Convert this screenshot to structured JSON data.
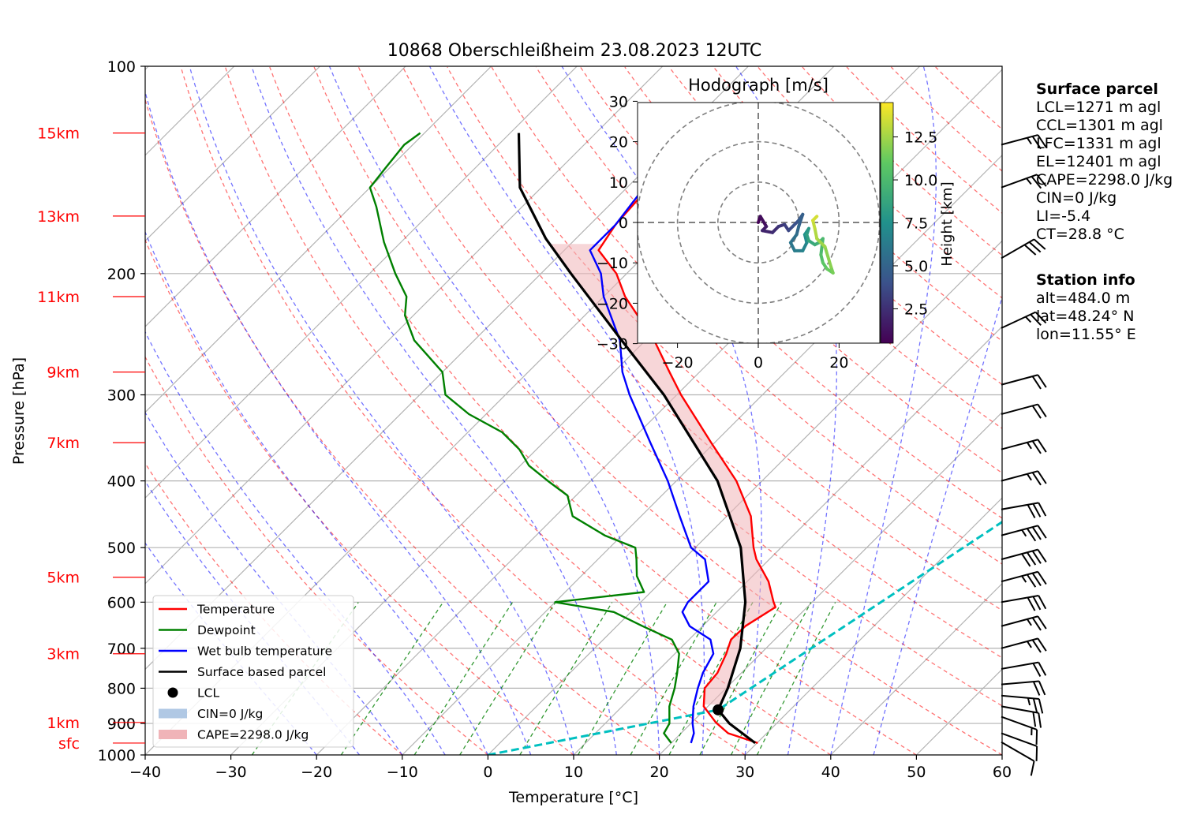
{
  "chart_data": {
    "type": "skew-t",
    "title": "10868 Oberschleißheim 23.08.2023 12UTC",
    "xlabel": "Temperature [°C]",
    "ylabel": "Pressure [hPa]",
    "xlim": [
      -40,
      60
    ],
    "ylim": [
      1000,
      100
    ],
    "y_scale": "log",
    "x_ticks": [
      -40,
      -30,
      -20,
      -10,
      0,
      10,
      20,
      30,
      40,
      50,
      60
    ],
    "y_ticks": [
      100,
      200,
      300,
      400,
      500,
      600,
      700,
      800,
      900,
      1000
    ],
    "grid": true,
    "height_labels": [
      {
        "label": "15km",
        "p": 125
      },
      {
        "label": "13km",
        "p": 165
      },
      {
        "label": "11km",
        "p": 216
      },
      {
        "label": "9km",
        "p": 278
      },
      {
        "label": "7km",
        "p": 352
      },
      {
        "label": "5km",
        "p": 552
      },
      {
        "label": "3km",
        "p": 713
      },
      {
        "label": "1km",
        "p": 897
      },
      {
        "label": "sfc",
        "p": 961
      }
    ],
    "series": [
      {
        "name": "Temperature",
        "color": "#ff0000",
        "points": [
          [
            961,
            30.1
          ],
          [
            930,
            25.5
          ],
          [
            897,
            22.8
          ],
          [
            850,
            19.5
          ],
          [
            800,
            17.5
          ],
          [
            760,
            17.2
          ],
          [
            713,
            16.0
          ],
          [
            680,
            14.9
          ],
          [
            650,
            15.0
          ],
          [
            610,
            16.3
          ],
          [
            600,
            15.5
          ],
          [
            560,
            12.5
          ],
          [
            520,
            8.5
          ],
          [
            500,
            6.8
          ],
          [
            450,
            2.8
          ],
          [
            400,
            -3.0
          ],
          [
            352,
            -10.4
          ],
          [
            300,
            -19.5
          ],
          [
            278,
            -23.5
          ],
          [
            250,
            -29.0
          ],
          [
            216,
            -37.5
          ],
          [
            200,
            -41.2
          ],
          [
            185,
            -46.0
          ],
          [
            170,
            -47.0
          ],
          [
            150,
            -47.5
          ],
          [
            140,
            -48.8
          ],
          [
            130,
            -47.0
          ],
          [
            125,
            -45.2
          ]
        ]
      },
      {
        "name": "Dewpoint",
        "color": "#008000",
        "points": [
          [
            961,
            20.0
          ],
          [
            930,
            18.0
          ],
          [
            900,
            17.5
          ],
          [
            850,
            15.5
          ],
          [
            800,
            14.0
          ],
          [
            760,
            12.5
          ],
          [
            713,
            10.5
          ],
          [
            680,
            8.0
          ],
          [
            650,
            3.0
          ],
          [
            620,
            -2.0
          ],
          [
            600,
            -10.0
          ],
          [
            580,
            -0.8
          ],
          [
            550,
            -3.5
          ],
          [
            520,
            -5.5
          ],
          [
            500,
            -7.0
          ],
          [
            480,
            -12.0
          ],
          [
            450,
            -18.0
          ],
          [
            420,
            -21.0
          ],
          [
            400,
            -25.0
          ],
          [
            380,
            -29.0
          ],
          [
            360,
            -32.0
          ],
          [
            340,
            -36.0
          ],
          [
            320,
            -42.0
          ],
          [
            300,
            -47.0
          ],
          [
            278,
            -50.0
          ],
          [
            250,
            -57.0
          ],
          [
            230,
            -61.0
          ],
          [
            216,
            -63.0
          ],
          [
            200,
            -67.0
          ],
          [
            180,
            -72.0
          ],
          [
            160,
            -77.0
          ],
          [
            150,
            -80.0
          ],
          [
            140,
            -80.5
          ],
          [
            130,
            -81.0
          ],
          [
            125,
            -80.5
          ]
        ]
      },
      {
        "name": "Wet bulb temperature",
        "color": "#0000ff",
        "points": [
          [
            961,
            22.3
          ],
          [
            930,
            21.5
          ],
          [
            900,
            20.2
          ],
          [
            850,
            18.3
          ],
          [
            800,
            16.7
          ],
          [
            760,
            15.5
          ],
          [
            713,
            14.5
          ],
          [
            680,
            12.5
          ],
          [
            650,
            8.5
          ],
          [
            620,
            6.0
          ],
          [
            600,
            5.5
          ],
          [
            560,
            5.5
          ],
          [
            520,
            2.5
          ],
          [
            500,
            -0.5
          ],
          [
            450,
            -5.5
          ],
          [
            400,
            -11.0
          ],
          [
            352,
            -17.5
          ],
          [
            300,
            -25.5
          ],
          [
            278,
            -29.0
          ],
          [
            250,
            -33.0
          ],
          [
            216,
            -40.0
          ],
          [
            200,
            -43.0
          ],
          [
            185,
            -47.0
          ],
          [
            170,
            -47.0
          ],
          [
            150,
            -48.0
          ],
          [
            140,
            -49.0
          ],
          [
            130,
            -47.5
          ],
          [
            125,
            -45.5
          ]
        ]
      },
      {
        "name": "Surface based parcel",
        "color": "#000000",
        "points": [
          [
            961,
            29.8
          ],
          [
            900,
            24.5
          ],
          [
            860,
            21.6
          ],
          [
            800,
            20.2
          ],
          [
            700,
            17.0
          ],
          [
            600,
            12.2
          ],
          [
            500,
            5.3
          ],
          [
            400,
            -5.2
          ],
          [
            300,
            -21.5
          ],
          [
            250,
            -32.8
          ],
          [
            200,
            -46.5
          ],
          [
            178,
            -53.5
          ],
          [
            150,
            -62.5
          ],
          [
            125,
            -69.0
          ]
        ]
      }
    ],
    "lcl": {
      "name": "LCL",
      "p": 860,
      "t": 21.6
    },
    "mixing_ratio_line": {
      "color": "#00c0c0",
      "points": [
        [
          1000,
          0.0
        ],
        [
          860,
          21.6
        ],
        [
          100,
          60.0
        ]
      ]
    },
    "shading": [
      {
        "name": "CIN=0 J/kg",
        "color": "#b0c8e4"
      },
      {
        "name": "CAPE=2298.0 J/kg",
        "color": "#f0b4b8"
      }
    ],
    "legend": {
      "placement": "lower-left"
    },
    "wind_barbs": [
      {
        "p": 958,
        "speed": 10,
        "dir": 240
      },
      {
        "p": 930,
        "speed": 10,
        "dir": 250
      },
      {
        "p": 880,
        "speed": 15,
        "dir": 250
      },
      {
        "p": 850,
        "speed": 20,
        "dir": 260
      },
      {
        "p": 820,
        "speed": 25,
        "dir": 265
      },
      {
        "p": 790,
        "speed": 20,
        "dir": 275
      },
      {
        "p": 750,
        "speed": 20,
        "dir": 280
      },
      {
        "p": 700,
        "speed": 25,
        "dir": 285
      },
      {
        "p": 650,
        "speed": 25,
        "dir": 285
      },
      {
        "p": 600,
        "speed": 30,
        "dir": 280
      },
      {
        "p": 560,
        "speed": 35,
        "dir": 285
      },
      {
        "p": 520,
        "speed": 40,
        "dir": 285
      },
      {
        "p": 480,
        "speed": 35,
        "dir": 285
      },
      {
        "p": 440,
        "speed": 30,
        "dir": 280
      },
      {
        "p": 400,
        "speed": 25,
        "dir": 285
      },
      {
        "p": 360,
        "speed": 25,
        "dir": 285
      },
      {
        "p": 320,
        "speed": 20,
        "dir": 285
      },
      {
        "p": 290,
        "speed": 20,
        "dir": 285
      },
      {
        "p": 240,
        "speed": 25,
        "dir": 295
      },
      {
        "p": 190,
        "speed": 30,
        "dir": 300
      },
      {
        "p": 150,
        "speed": 25,
        "dir": 290
      },
      {
        "p": 130,
        "speed": 25,
        "dir": 285
      }
    ],
    "hodograph": {
      "title": "Hodograph [m/s]",
      "xlim": [
        -30,
        30
      ],
      "ylim": [
        -30,
        30
      ],
      "x_ticks": [
        -20,
        0,
        20
      ],
      "y_ticks": [
        30,
        20,
        10,
        0,
        -10,
        -20,
        -30
      ],
      "rings": [
        10,
        20,
        30
      ],
      "colorbar": {
        "label": "Height [km]",
        "ticks": [
          2.5,
          5.0,
          7.5,
          10.0,
          12.5
        ],
        "range": [
          0.5,
          14.5
        ]
      },
      "points": [
        [
          0,
          0,
          0.6
        ],
        [
          0.5,
          1.5,
          1.0
        ],
        [
          2.0,
          -1.0,
          1.6
        ],
        [
          1.0,
          -2.0,
          2.0
        ],
        [
          3.5,
          -2.5,
          2.4
        ],
        [
          5.0,
          -1.0,
          2.8
        ],
        [
          6.5,
          -0.5,
          3.2
        ],
        [
          7.5,
          -2.0,
          3.6
        ],
        [
          8.5,
          -1.0,
          4.0
        ],
        [
          10.0,
          0.5,
          4.4
        ],
        [
          11.0,
          2.0,
          4.8
        ],
        [
          10.0,
          -1.0,
          5.2
        ],
        [
          9.5,
          -3.0,
          5.6
        ],
        [
          8.0,
          -5.0,
          6.0
        ],
        [
          9.0,
          -7.0,
          6.4
        ],
        [
          11.0,
          -7.0,
          6.8
        ],
        [
          12.0,
          -5.0,
          7.2
        ],
        [
          11.5,
          -3.0,
          7.6
        ],
        [
          12.5,
          -1.5,
          8.0
        ],
        [
          12.0,
          -3.0,
          8.4
        ],
        [
          12.5,
          -4.5,
          8.8
        ],
        [
          14.0,
          -5.5,
          9.2
        ],
        [
          15.0,
          -5.0,
          9.6
        ],
        [
          16.0,
          -4.0,
          10.0
        ],
        [
          15.5,
          -8.0,
          10.4
        ],
        [
          16.0,
          -10.0,
          10.8
        ],
        [
          17.0,
          -11.5,
          11.2
        ],
        [
          18.5,
          -12.5,
          11.6
        ],
        [
          18.0,
          -11.0,
          12.0
        ],
        [
          16.5,
          -6.0,
          12.4
        ],
        [
          14.5,
          -4.0,
          12.8
        ],
        [
          14.0,
          -1.5,
          13.2
        ],
        [
          13.5,
          0.5,
          13.6
        ],
        [
          14.5,
          1.5,
          14.0
        ]
      ]
    }
  },
  "surface_parcel": {
    "title": "Surface parcel",
    "lines": [
      "LCL=1271 m agl",
      "CCL=1301 m agl",
      "LFC=1331 m agl",
      "EL=12401 m agl",
      "CAPE=2298.0 J/kg",
      "CIN=0 J/kg",
      "LI=-5.4",
      "CT=28.8 °C"
    ]
  },
  "station_info": {
    "title": "Station info",
    "lines": [
      "alt=484.0 m",
      "lat=48.24° N",
      "lon=11.55° E"
    ]
  }
}
